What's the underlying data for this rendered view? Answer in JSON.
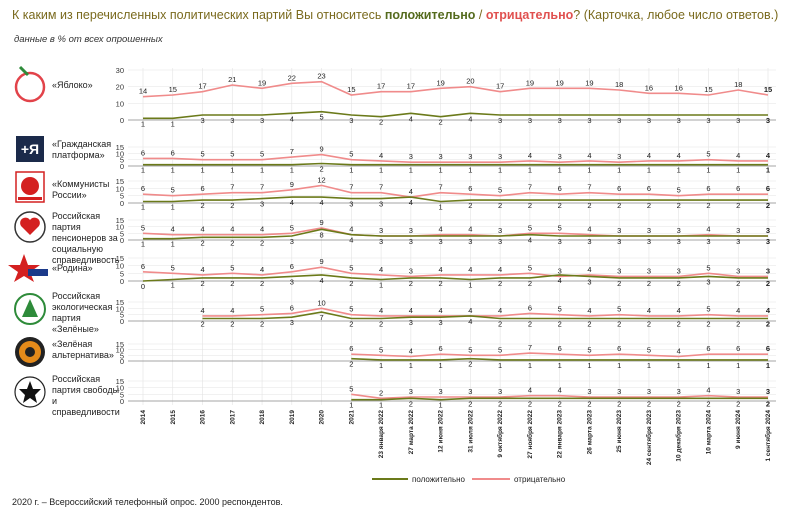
{
  "header": {
    "title_pre": "К каким из перечисленных политических партий Вы относитесь",
    "title_pos": "положительно",
    "title_sep": " / ",
    "title_neg": "отрицательно",
    "title_post": "? (Карточка, любое число ответов.)",
    "subtitle": "данные в % от всех опрошенных"
  },
  "footnote": "2020 г. – Всероссийский телефонный опрос. 2000 респондентов.",
  "colors": {
    "positive": "#6b7a1a",
    "negative": "#f08b8b",
    "grid": "#e3e3e3",
    "axis": "#555555"
  },
  "chart_data": {
    "type": "line",
    "x": [
      "2014",
      "2015",
      "2016",
      "2017",
      "2018",
      "2019",
      "2020",
      "2021",
      "23 января 2022",
      "27 марта 2022",
      "12 июня 2022",
      "31 июля 2022",
      "9 октября 2022",
      "27 ноября 2022",
      "22 января 2023",
      "26 марта 2023",
      "25 июня 2023",
      "24 сентября 2023",
      "10 декабря 2023",
      "10 марта 2024",
      "9 июня 2024",
      "1 сентября 2024"
    ],
    "legend": {
      "positive": "положительно",
      "negative": "отрицательно"
    },
    "panels": [
      {
        "party": "«Яблоко»",
        "icon": "yabloko-logo-icon",
        "yticks": [
          0,
          10,
          20,
          30
        ],
        "ymax": 30,
        "negative": [
          14,
          15,
          17,
          21,
          19,
          22,
          23,
          15,
          17,
          17,
          19,
          20,
          17,
          19,
          19,
          19,
          18,
          16,
          16,
          15,
          18,
          15
        ],
        "positive": [
          1,
          1,
          3,
          3,
          3,
          4,
          5,
          3,
          2,
          4,
          2,
          4,
          3,
          3,
          3,
          3,
          3,
          3,
          3,
          3,
          3,
          3
        ]
      },
      {
        "party": "«Гражданская платформа»",
        "icon": "grazhdanskaya-platforma-logo-icon",
        "yticks": [
          0,
          5,
          10,
          15
        ],
        "ymax": 15,
        "negative": [
          6,
          6,
          5,
          5,
          5,
          7,
          9,
          5,
          4,
          3,
          3,
          3,
          3,
          4,
          3,
          4,
          3,
          4,
          4,
          5,
          4,
          4
        ],
        "positive": [
          1,
          1,
          1,
          1,
          1,
          1,
          2,
          1,
          1,
          1,
          1,
          1,
          1,
          1,
          1,
          1,
          1,
          1,
          1,
          1,
          1,
          1
        ]
      },
      {
        "party": "«Коммунисты России»",
        "icon": "kommunisty-rossii-logo-icon",
        "yticks": [
          0,
          5,
          10,
          15
        ],
        "ymax": 15,
        "negative": [
          6,
          5,
          6,
          7,
          7,
          9,
          12,
          7,
          7,
          4,
          7,
          6,
          5,
          7,
          6,
          7,
          6,
          6,
          5,
          6,
          6,
          6
        ],
        "positive": [
          1,
          1,
          2,
          2,
          3,
          4,
          4,
          3,
          3,
          4,
          1,
          2,
          2,
          2,
          2,
          2,
          2,
          2,
          2,
          2,
          2,
          2
        ]
      },
      {
        "party": "Российская партия пенсионеров за социальную справедливость",
        "icon": "partiya-pensionerov-logo-icon",
        "yticks": [
          0,
          5,
          10,
          15
        ],
        "ymax": 15,
        "negative": [
          5,
          4,
          4,
          4,
          4,
          5,
          9,
          4,
          3,
          3,
          4,
          4,
          3,
          5,
          5,
          4,
          3,
          3,
          3,
          4,
          3,
          3
        ],
        "positive": [
          1,
          1,
          2,
          2,
          2,
          3,
          8,
          4,
          3,
          3,
          3,
          3,
          3,
          4,
          3,
          3,
          3,
          3,
          3,
          3,
          3,
          3
        ]
      },
      {
        "party": "«Родина»",
        "icon": "rodina-logo-icon",
        "yticks": [
          0,
          5,
          10,
          15
        ],
        "ymax": 15,
        "negative": [
          6,
          5,
          4,
          5,
          4,
          6,
          9,
          5,
          4,
          3,
          4,
          4,
          4,
          5,
          3,
          4,
          3,
          3,
          3,
          5,
          3,
          3
        ],
        "positive": [
          0,
          1,
          2,
          2,
          2,
          3,
          4,
          2,
          1,
          2,
          2,
          1,
          2,
          2,
          4,
          3,
          2,
          2,
          2,
          3,
          2,
          2
        ]
      },
      {
        "party": "Российская экологическая партия «Зелёные»",
        "icon": "zelenye-logo-icon",
        "yticks": [
          0,
          5,
          10,
          15
        ],
        "ymax": 15,
        "start": 2,
        "negative": [
          null,
          null,
          4,
          4,
          5,
          6,
          10,
          5,
          4,
          4,
          4,
          4,
          4,
          6,
          5,
          4,
          5,
          4,
          4,
          5,
          4,
          4
        ],
        "positive": [
          null,
          null,
          2,
          2,
          2,
          3,
          7,
          2,
          2,
          3,
          3,
          4,
          2,
          2,
          2,
          2,
          2,
          2,
          2,
          2,
          2,
          2
        ]
      },
      {
        "party": "«Зелёная альтернатива»",
        "icon": "zelenaya-alternativa-logo-icon",
        "yticks": [
          0,
          5,
          10,
          15
        ],
        "ymax": 15,
        "start": 7,
        "negative": [
          null,
          null,
          null,
          null,
          null,
          null,
          null,
          6,
          5,
          4,
          6,
          5,
          5,
          7,
          6,
          5,
          6,
          5,
          4,
          6,
          6,
          6
        ],
        "positive": [
          null,
          null,
          null,
          null,
          null,
          null,
          null,
          2,
          1,
          1,
          1,
          2,
          1,
          1,
          1,
          1,
          1,
          1,
          1,
          1,
          1,
          1
        ]
      },
      {
        "party": "Российская партия свободы и справедливости",
        "icon": "partiya-svobody-logo-icon",
        "yticks": [
          0,
          5,
          10,
          15
        ],
        "ymax": 15,
        "start": 7,
        "negative": [
          null,
          null,
          null,
          null,
          null,
          null,
          null,
          5,
          2,
          3,
          3,
          3,
          3,
          4,
          4,
          3,
          3,
          3,
          3,
          4,
          3,
          3
        ],
        "positive": [
          null,
          null,
          null,
          null,
          null,
          null,
          null,
          1,
          1,
          2,
          1,
          2,
          2,
          2,
          2,
          2,
          2,
          2,
          2,
          2,
          2,
          2
        ]
      }
    ]
  }
}
